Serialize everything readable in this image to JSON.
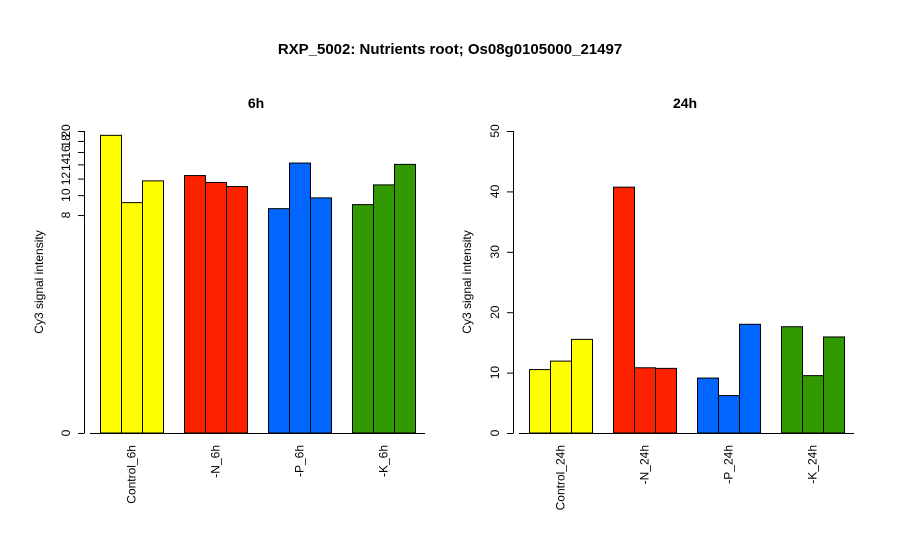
{
  "figure_title": "RXP_5002: Nutrients root; Os08g0105000_21497",
  "chart_data": [
    {
      "type": "bar",
      "title": "6h",
      "ylabel": "Cy3 signal intensity",
      "yticks": [
        0,
        8,
        10,
        12,
        14,
        16,
        18,
        20
      ],
      "ylim": [
        0,
        20
      ],
      "scale": "log1p",
      "categories": [
        "Control_6h",
        "-N_6h",
        "-P_6h",
        "-K_6h"
      ],
      "groups": [
        {
          "category": "Control_6h",
          "color": "#FFFF00",
          "values": [
            19.1,
            9.2,
            11.7
          ]
        },
        {
          "category": "-N_6h",
          "color": "#FF2200",
          "values": [
            12.4,
            11.5,
            11.0
          ]
        },
        {
          "category": "-P_6h",
          "color": "#0066FF",
          "values": [
            8.6,
            14.2,
            9.7
          ]
        },
        {
          "category": "-K_6h",
          "color": "#339900",
          "values": [
            9.0,
            11.2,
            14.0
          ]
        }
      ]
    },
    {
      "type": "bar",
      "title": "24h",
      "ylabel": "Cy3 signal intensity",
      "yticks": [
        0,
        10,
        20,
        30,
        40,
        50
      ],
      "ylim": [
        0,
        50
      ],
      "scale": "linear",
      "categories": [
        "Control_24h",
        "-N_24h",
        "-P_24h",
        "-K_24h"
      ],
      "groups": [
        {
          "category": "Control_24h",
          "color": "#FFFF00",
          "values": [
            10.5,
            11.9,
            15.5
          ]
        },
        {
          "category": "-N_24h",
          "color": "#FF2200",
          "values": [
            40.7,
            10.8,
            10.7
          ]
        },
        {
          "category": "-P_24h",
          "color": "#0066FF",
          "values": [
            9.1,
            6.2,
            18.0
          ]
        },
        {
          "category": "-K_24h",
          "color": "#339900",
          "values": [
            17.6,
            9.5,
            15.9
          ]
        }
      ]
    }
  ]
}
